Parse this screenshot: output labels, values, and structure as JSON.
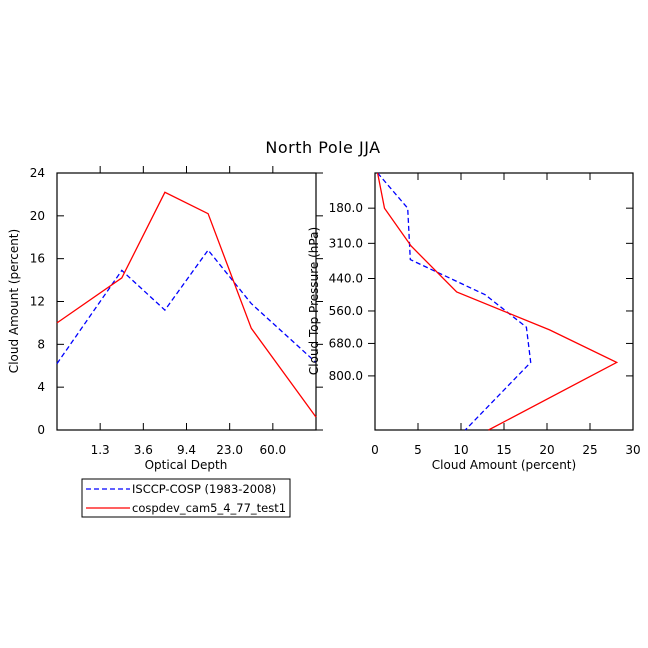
{
  "title": "North Pole JJA",
  "chart_data": [
    {
      "type": "line",
      "xlabel": "Optical Depth",
      "ylabel": "Cloud Amount (percent)",
      "x_ticks": [
        "1.3",
        "3.6",
        "9.4",
        "23.0",
        "60.0"
      ],
      "y_ticks": [
        "0",
        "4",
        "8",
        "12",
        "16",
        "20",
        "24"
      ],
      "ylim": [
        0,
        24
      ],
      "x_positions": [
        0,
        1,
        2,
        3,
        4,
        5,
        6
      ],
      "series": [
        {
          "name": "ISCCP-COSP (1983-2008)",
          "color": "#0000ff",
          "style": "dashed",
          "values": [
            6.2,
            14.9,
            11.2,
            16.8,
            11.8,
            6.3
          ]
        },
        {
          "name": "cospdev_cam5_4_77_test1",
          "color": "#ff0000",
          "style": "solid",
          "values": [
            10.0,
            14.2,
            22.2,
            20.2,
            9.5,
            1.2
          ]
        }
      ]
    },
    {
      "type": "line",
      "xlabel": "Cloud Amount (percent)",
      "ylabel": "Cloud Top Pressure (hPa)",
      "x_ticks": [
        "0",
        "5",
        "10",
        "15",
        "20",
        "25",
        "30"
      ],
      "xlim": [
        0,
        30
      ],
      "y_ticks": [
        "180.0",
        "310.0",
        "440.0",
        "560.0",
        "680.0",
        "800.0"
      ],
      "ylim": [
        50,
        1000
      ],
      "series": [
        {
          "name": "ISCCP-COSP (1983-2008)",
          "color": "#0000ff",
          "style": "dashed",
          "x": [
            0.3,
            3.8,
            4.1,
            12.8,
            17.6,
            18.1,
            10.5
          ],
          "y": [
            50,
            180,
            370,
            500,
            620,
            750,
            1000
          ]
        },
        {
          "name": "cospdev_cam5_4_77_test1",
          "color": "#ff0000",
          "style": "solid",
          "x": [
            0.3,
            1.1,
            4.2,
            9.5,
            20.3,
            28.1,
            13.2
          ],
          "y": [
            50,
            180,
            320,
            490,
            630,
            750,
            1000
          ]
        }
      ]
    }
  ],
  "legend": [
    {
      "label": "ISCCP-COSP (1983-2008)",
      "color": "#0000ff",
      "style": "dashed"
    },
    {
      "label": "cospdev_cam5_4_77_test1",
      "color": "#ff0000",
      "style": "solid"
    }
  ]
}
